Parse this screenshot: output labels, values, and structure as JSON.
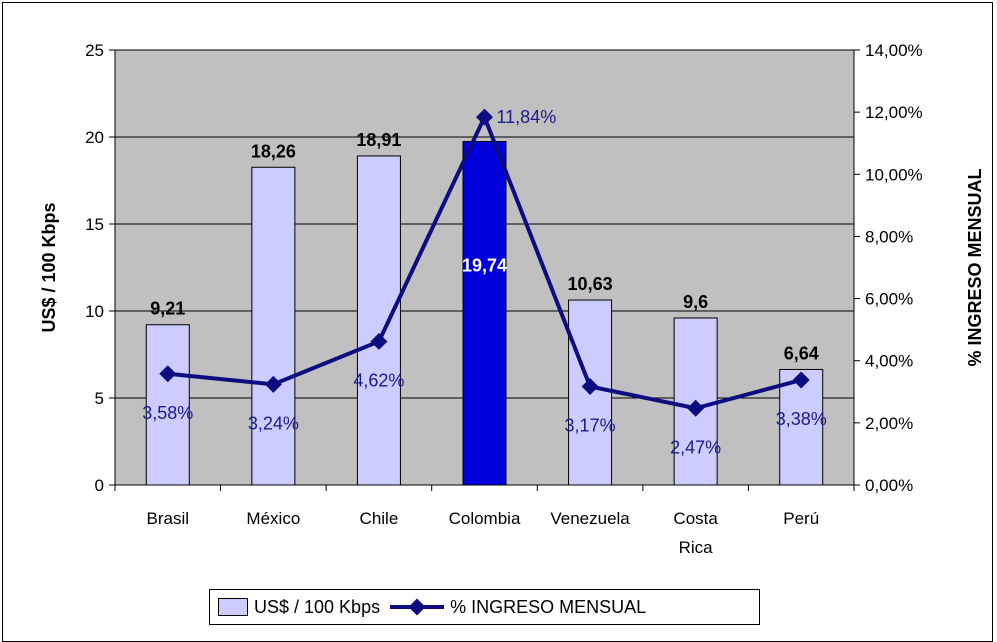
{
  "chart_data": {
    "type": "bar+line",
    "categories": [
      "Brasil",
      "México",
      "Chile",
      "Colombia",
      "Venezuela",
      "Costa Rica",
      "Perú"
    ],
    "category_lines": [
      [
        "Brasil"
      ],
      [
        "México"
      ],
      [
        "Chile"
      ],
      [
        "Colombia"
      ],
      [
        "Venezuela"
      ],
      [
        "Costa",
        "Rica"
      ],
      [
        "Perú"
      ]
    ],
    "series": [
      {
        "name": "US$ / 100 Kbps",
        "kind": "bar",
        "axis": "left",
        "values": [
          9.21,
          18.26,
          18.91,
          19.74,
          10.63,
          9.6,
          6.64
        ],
        "labels": [
          "9,21",
          "18,26",
          "18,91",
          "19,74",
          "10,63",
          "9,6",
          "6,64"
        ],
        "color": "#ccccff",
        "highlight_index": 3,
        "highlight_color": "#0000dd"
      },
      {
        "name": "% INGRESO MENSUAL",
        "kind": "line",
        "axis": "right",
        "values": [
          3.58,
          3.24,
          4.62,
          11.84,
          3.17,
          2.47,
          3.38
        ],
        "labels": [
          "3,58%",
          "3,24%",
          "4,62%",
          "11,84%",
          "3,17%",
          "2,47%",
          "3,38%"
        ],
        "color": "#0d0d80"
      }
    ],
    "ylabel": "US$ / 100 Kbps",
    "y2label": "% INGRESO MENSUAL",
    "ylim": [
      0,
      25
    ],
    "y2lim": [
      0,
      14
    ],
    "yticks": [
      0,
      5,
      10,
      15,
      20,
      25
    ],
    "ytick_labels": [
      "0",
      "5",
      "10",
      "15",
      "20",
      "25"
    ],
    "y2ticks": [
      0,
      2,
      4,
      6,
      8,
      10,
      12,
      14
    ],
    "y2tick_labels": [
      "0,00%",
      "2,00%",
      "4,00%",
      "6,00%",
      "8,00%",
      "10,00%",
      "12,00%",
      "14,00%"
    ],
    "plot_background": "#c0c0c0",
    "grid": true,
    "legend_position": "bottom"
  },
  "legend": {
    "bar_label": "US$ / 100 Kbps",
    "line_label": "% INGRESO MENSUAL"
  }
}
